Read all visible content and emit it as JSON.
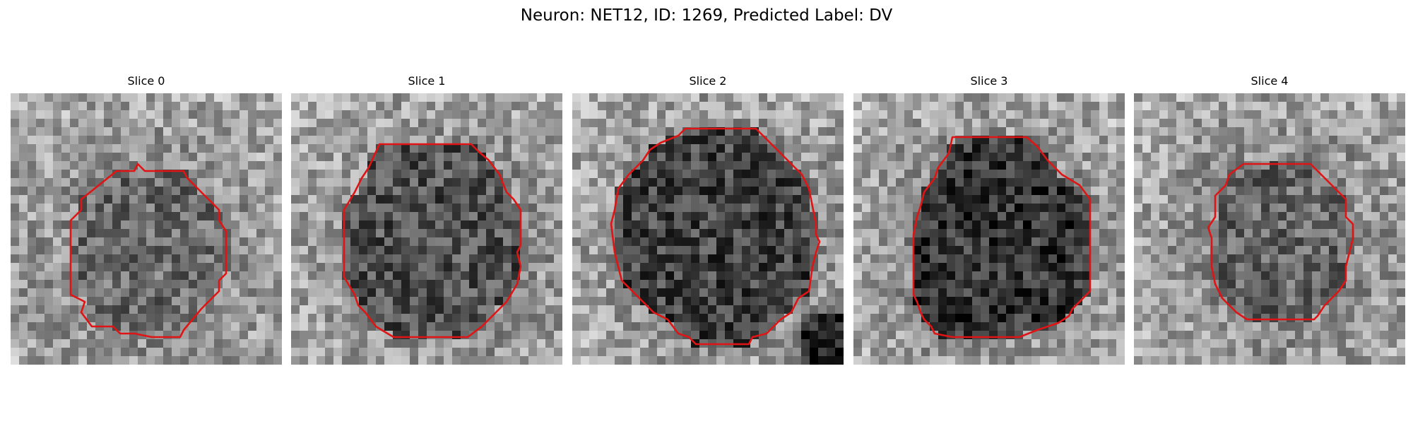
{
  "figure": {
    "title": "Neuron: NET12, ID: 1269, Predicted Label: DV"
  },
  "colors": {
    "background": "#ffffff",
    "contour": "#e01414",
    "image_colormap": "grayscale"
  },
  "panels": [
    {
      "label": "Slice 0",
      "cell_tone": "mid-gray",
      "blob_darkness": 0.35
    },
    {
      "label": "Slice 1",
      "cell_tone": "dark-gray",
      "blob_darkness": 0.55
    },
    {
      "label": "Slice 2",
      "cell_tone": "dark-gray",
      "blob_darkness": 0.65
    },
    {
      "label": "Slice 3",
      "cell_tone": "darkest",
      "blob_darkness": 0.75
    },
    {
      "label": "Slice 4",
      "cell_tone": "mid-gray",
      "blob_darkness": 0.4
    }
  ]
}
